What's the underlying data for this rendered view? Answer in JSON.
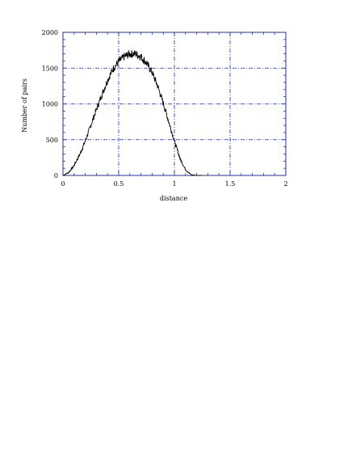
{
  "chart_data": {
    "type": "line",
    "title": "",
    "xlabel": "distance",
    "ylabel": "Number of pairs",
    "xlim": [
      0,
      2
    ],
    "ylim": [
      0,
      2000
    ],
    "x_ticks": [
      0,
      0.5,
      1,
      1.5,
      2
    ],
    "x_tick_labels": [
      "0",
      "0.5",
      "1",
      "1.5",
      "2"
    ],
    "y_ticks": [
      0,
      500,
      1000,
      1500,
      2000
    ],
    "y_tick_labels": [
      "0",
      "500",
      "1000",
      "1500",
      "2000"
    ],
    "grid": true,
    "legend": "none",
    "colors": {
      "line": "#000000",
      "frame": "#1f2fa8",
      "grid": "#1f2fa8"
    },
    "series": [
      {
        "x": [
          0.0,
          0.05,
          0.1,
          0.15,
          0.2,
          0.25,
          0.3,
          0.35,
          0.4,
          0.45,
          0.5,
          0.55,
          0.6,
          0.65,
          0.7,
          0.75,
          0.8,
          0.85,
          0.9,
          0.95,
          1.0,
          1.05,
          1.1,
          1.15,
          1.2,
          1.25
        ],
        "y": [
          0,
          40,
          140,
          290,
          480,
          700,
          920,
          1130,
          1330,
          1490,
          1590,
          1660,
          1700,
          1700,
          1660,
          1570,
          1440,
          1250,
          1010,
          750,
          480,
          240,
          80,
          10,
          0,
          0
        ]
      }
    ]
  }
}
